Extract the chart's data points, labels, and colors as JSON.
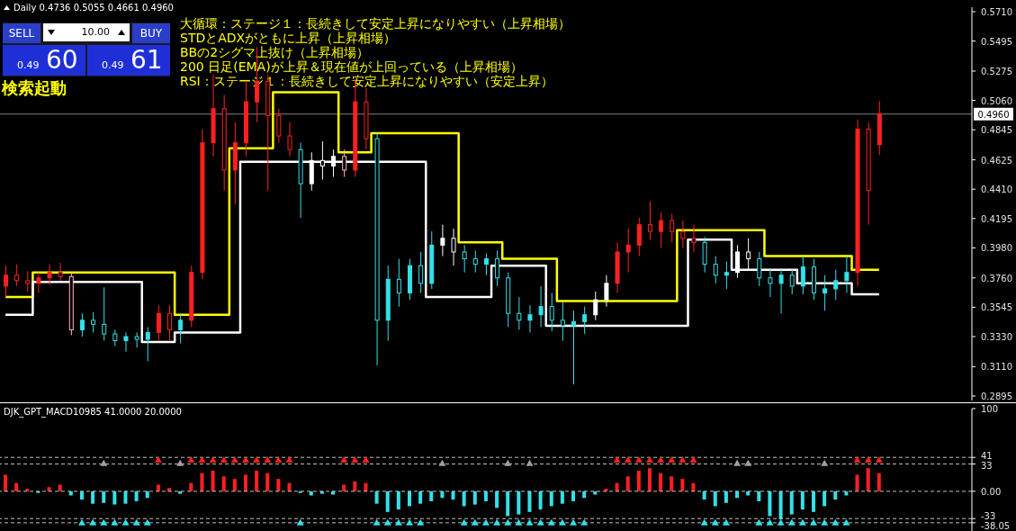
{
  "chart_data": [
    {
      "type": "candlestick",
      "tick_labels": "y",
      "annotations": [
        "Daily 0.4736 0.5055 0.4661 0.4960",
        "SELL",
        "10.00",
        "BUY",
        "0.49",
        "60",
        "0.49",
        "61",
        "検索起動",
        "大循環：ステージ１：長続きして安定上昇になりやすい（上昇相場）",
        "STDとADXがともに上昇（上昇相場）",
        "BBの2シグマ上抜け（上昇相場）",
        "200 日足(EMA)が上昇＆現在値が上回っている（上昇相場）",
        "RSI：ステージ１：長続きして安定上昇になりやすい（安定上昇）"
      ],
      "categories": [
        null,
        null,
        null,
        null,
        null,
        null,
        null,
        null,
        null,
        null,
        null,
        null,
        null,
        null,
        null,
        null,
        null,
        null,
        null,
        null,
        null,
        null,
        null,
        null,
        null,
        null,
        null,
        null,
        null,
        null,
        null,
        null,
        null,
        null,
        null,
        null,
        null,
        null,
        null,
        null,
        null,
        null,
        null,
        null,
        null,
        null,
        null,
        null,
        null,
        null,
        null,
        null,
        null,
        null,
        null,
        null,
        null,
        null,
        null,
        null,
        null,
        null,
        null,
        null,
        null,
        null,
        null,
        null,
        null,
        null,
        null,
        null,
        null,
        null,
        null,
        null,
        null,
        null,
        null,
        null,
        null,
        null,
        null,
        null,
        null,
        null,
        null,
        null,
        null
      ],
      "ohlc": [
        [
          0.37,
          0.385,
          0.362,
          0.378
        ],
        [
          0.378,
          0.386,
          0.37,
          0.374
        ],
        [
          0.374,
          0.381,
          0.366,
          0.372
        ],
        [
          0.372,
          0.38,
          0.365,
          0.376
        ],
        [
          0.376,
          0.386,
          0.371,
          0.38
        ],
        [
          0.38,
          0.387,
          0.374,
          0.377
        ],
        [
          0.377,
          0.38,
          0.334,
          0.338
        ],
        [
          0.338,
          0.35,
          0.333,
          0.345
        ],
        [
          0.345,
          0.351,
          0.336,
          0.342
        ],
        [
          0.342,
          0.369,
          0.33,
          0.335
        ],
        [
          0.335,
          0.338,
          0.326,
          0.33
        ],
        [
          0.33,
          0.336,
          0.322,
          0.333
        ],
        [
          0.333,
          0.336,
          0.325,
          0.331
        ],
        [
          0.331,
          0.34,
          0.315,
          0.336
        ],
        [
          0.336,
          0.356,
          0.33,
          0.35
        ],
        [
          0.35,
          0.356,
          0.33,
          0.338
        ],
        [
          0.338,
          0.35,
          0.328,
          0.345
        ],
        [
          0.345,
          0.385,
          0.34,
          0.38
        ],
        [
          0.38,
          0.485,
          0.375,
          0.475
        ],
        [
          0.475,
          0.525,
          0.465,
          0.5
        ],
        [
          0.5,
          0.51,
          0.44,
          0.455
        ],
        [
          0.455,
          0.49,
          0.43,
          0.475
        ],
        [
          0.475,
          0.52,
          0.465,
          0.505
        ],
        [
          0.505,
          0.545,
          0.49,
          0.52
        ],
        [
          0.52,
          0.525,
          0.44,
          0.495
        ],
        [
          0.495,
          0.5,
          0.475,
          0.48
        ],
        [
          0.48,
          0.49,
          0.465,
          0.47
        ],
        [
          0.47,
          0.475,
          0.42,
          0.445
        ],
        [
          0.445,
          0.468,
          0.44,
          0.462
        ],
        [
          0.462,
          0.476,
          0.448,
          0.458
        ],
        [
          0.458,
          0.47,
          0.45,
          0.465
        ],
        [
          0.465,
          0.47,
          0.45,
          0.455
        ],
        [
          0.455,
          0.522,
          0.45,
          0.505
        ],
        [
          0.505,
          0.515,
          0.47,
          0.478
        ],
        [
          0.478,
          0.482,
          0.312,
          0.345
        ],
        [
          0.345,
          0.385,
          0.33,
          0.375
        ],
        [
          0.375,
          0.39,
          0.355,
          0.365
        ],
        [
          0.365,
          0.39,
          0.36,
          0.385
        ],
        [
          0.385,
          0.395,
          0.365,
          0.372
        ],
        [
          0.372,
          0.41,
          0.368,
          0.4
        ],
        [
          0.4,
          0.415,
          0.392,
          0.405
        ],
        [
          0.405,
          0.412,
          0.385,
          0.395
        ],
        [
          0.395,
          0.4,
          0.38,
          0.39
        ],
        [
          0.39,
          0.396,
          0.38,
          0.386
        ],
        [
          0.386,
          0.394,
          0.378,
          0.39
        ],
        [
          0.39,
          0.396,
          0.37,
          0.376
        ],
        [
          0.376,
          0.38,
          0.34,
          0.35
        ],
        [
          0.35,
          0.362,
          0.338,
          0.345
        ],
        [
          0.345,
          0.356,
          0.336,
          0.349
        ],
        [
          0.349,
          0.37,
          0.34,
          0.355
        ],
        [
          0.355,
          0.365,
          0.337,
          0.345
        ],
        [
          0.345,
          0.358,
          0.33,
          0.341
        ],
        [
          0.341,
          0.352,
          0.298,
          0.344
        ],
        [
          0.344,
          0.355,
          0.335,
          0.349
        ],
        [
          0.349,
          0.366,
          0.345,
          0.36
        ],
        [
          0.36,
          0.378,
          0.355,
          0.372
        ],
        [
          0.372,
          0.402,
          0.365,
          0.395
        ],
        [
          0.395,
          0.412,
          0.38,
          0.4
        ],
        [
          0.4,
          0.42,
          0.392,
          0.415
        ],
        [
          0.415,
          0.432,
          0.404,
          0.41
        ],
        [
          0.41,
          0.424,
          0.398,
          0.418
        ],
        [
          0.418,
          0.423,
          0.402,
          0.41
        ],
        [
          0.41,
          0.418,
          0.398,
          0.405
        ],
        [
          0.405,
          0.415,
          0.395,
          0.402
        ],
        [
          0.402,
          0.406,
          0.38,
          0.386
        ],
        [
          0.386,
          0.392,
          0.372,
          0.378
        ],
        [
          0.378,
          0.388,
          0.368,
          0.38
        ],
        [
          0.38,
          0.4,
          0.376,
          0.395
        ],
        [
          0.395,
          0.405,
          0.382,
          0.39
        ],
        [
          0.39,
          0.395,
          0.37,
          0.376
        ],
        [
          0.376,
          0.383,
          0.362,
          0.372
        ],
        [
          0.372,
          0.382,
          0.35,
          0.378
        ],
        [
          0.378,
          0.382,
          0.364,
          0.37
        ],
        [
          0.37,
          0.392,
          0.364,
          0.384
        ],
        [
          0.384,
          0.39,
          0.36,
          0.365
        ],
        [
          0.365,
          0.378,
          0.352,
          0.368
        ],
        [
          0.368,
          0.382,
          0.36,
          0.374
        ],
        [
          0.374,
          0.392,
          0.365,
          0.38
        ],
        [
          0.38,
          0.492,
          0.37,
          0.485
        ],
        [
          0.485,
          0.49,
          0.415,
          0.44
        ],
        [
          0.4736,
          0.5055,
          0.4661,
          0.496
        ],
        null,
        null,
        null,
        null,
        null,
        null,
        null,
        null
      ],
      "colors": [
        "#ff2020",
        "#ff2020",
        "#ff2020",
        "#ff2020",
        "#ff2020",
        "#ff2020",
        "#ffb6c1",
        "#33e0e8",
        "#33e0e8",
        "#33e0e8",
        "#33e0e8",
        "#33e0e8",
        "#33e0e8",
        "#33e0e8",
        "#ff2020",
        "#ff2020",
        "#33e0e8",
        "#ff2020",
        "#ff2020",
        "#ff2020",
        "#ff2020",
        "#ff2020",
        "#ff2020",
        "#ff2020",
        "#ff2020",
        "#ff2020",
        "#ff2020",
        "#33e0e8",
        "#ffffff",
        "#ffffff",
        "#ffffff",
        "#ffb6c1",
        "#ff2020",
        "#ff2020",
        "#33e0e8",
        "#33e0e8",
        "#33e0e8",
        "#33e0e8",
        "#33e0e8",
        "#33e0e8",
        "#ffffff",
        "#ffffff",
        "#33e0e8",
        "#33e0e8",
        "#33e0e8",
        "#33e0e8",
        "#33e0e8",
        "#33e0e8",
        "#33e0e8",
        "#33e0e8",
        "#33e0e8",
        "#33e0e8",
        "#33e0e8",
        "#33e0e8",
        "#ffffff",
        "#ffffff",
        "#ff2020",
        "#ff2020",
        "#ff2020",
        "#ff2020",
        "#ff2020",
        "#ff2020",
        "#ff2020",
        "#ff2020",
        "#33e0e8",
        "#33e0e8",
        "#33e0e8",
        "#ffffff",
        "#ffffff",
        "#33e0e8",
        "#33e0e8",
        "#33e0e8",
        "#33e0e8",
        "#33e0e8",
        "#33e0e8",
        "#33e0e8",
        "#33e0e8",
        "#33e0e8",
        "#ff2020",
        "#ff2020",
        "#ff2020",
        null,
        null,
        null,
        null,
        null,
        null,
        null,
        null
      ],
      "series": [
        {
          "type": "step",
          "color": "#ffff00",
          "values": [
            0.362,
            0.362,
            0.362,
            0.38,
            0.38,
            0.38,
            0.38,
            0.38,
            0.38,
            0.38,
            0.38,
            0.38,
            0.38,
            0.38,
            0.38,
            0.38,
            0.349,
            0.349,
            0.349,
            0.349,
            0.349,
            0.471,
            0.471,
            0.471,
            0.471,
            0.512,
            0.512,
            0.512,
            0.512,
            0.512,
            0.512,
            0.468,
            0.468,
            0.468,
            0.482,
            0.482,
            0.482,
            0.482,
            0.482,
            0.482,
            0.482,
            0.482,
            0.402,
            0.402,
            0.402,
            0.402,
            0.39,
            0.39,
            0.39,
            0.39,
            0.39,
            0.359,
            0.359,
            0.359,
            0.359,
            0.359,
            0.359,
            0.359,
            0.359,
            0.359,
            0.359,
            0.359,
            0.411,
            0.411,
            0.411,
            0.411,
            0.411,
            0.411,
            0.411,
            0.411,
            0.392,
            0.392,
            0.392,
            0.392,
            0.392,
            0.392,
            0.392,
            0.392,
            0.382,
            0.382,
            0.382,
            null,
            null,
            null,
            null,
            null,
            null,
            null,
            null
          ]
        },
        {
          "type": "step",
          "color": "#ffffff",
          "values": [
            0.349,
            0.349,
            0.349,
            0.373,
            0.373,
            0.373,
            0.373,
            0.373,
            0.373,
            0.373,
            0.373,
            0.373,
            0.373,
            0.329,
            0.329,
            0.329,
            0.336,
            0.336,
            0.336,
            0.336,
            0.336,
            0.336,
            0.461,
            0.461,
            0.461,
            0.461,
            0.461,
            0.461,
            0.461,
            0.461,
            0.461,
            0.461,
            0.461,
            0.461,
            0.461,
            0.461,
            0.461,
            0.461,
            0.461,
            0.362,
            0.362,
            0.362,
            0.362,
            0.362,
            0.362,
            0.385,
            0.385,
            0.385,
            0.385,
            0.385,
            0.341,
            0.341,
            0.341,
            0.341,
            0.341,
            0.341,
            0.341,
            0.341,
            0.341,
            0.341,
            0.341,
            0.341,
            0.341,
            0.404,
            0.404,
            0.404,
            0.404,
            0.382,
            0.382,
            0.382,
            0.382,
            0.382,
            0.382,
            0.372,
            0.372,
            0.372,
            0.372,
            0.372,
            0.364,
            0.364,
            0.364,
            null,
            null,
            null,
            null,
            null,
            null,
            null,
            null
          ]
        }
      ],
      "ylim": [
        0.2862,
        0.5743
      ],
      "yticks": [
        {
          "value": 0.571,
          "label": "0.5710"
        },
        {
          "value": 0.5495,
          "label": "0.5495"
        },
        {
          "value": 0.5275,
          "label": "0.5275"
        },
        {
          "value": 0.506,
          "label": "0.5060"
        },
        {
          "value": 0.4845,
          "label": "0.4845"
        },
        {
          "value": 0.4625,
          "label": "0.4625"
        },
        {
          "value": 0.441,
          "label": "0.4410"
        },
        {
          "value": 0.4195,
          "label": "0.4195"
        },
        {
          "value": 0.398,
          "label": "0.3980"
        },
        {
          "value": 0.376,
          "label": "0.3760"
        },
        {
          "value": 0.3545,
          "label": "0.3545"
        },
        {
          "value": 0.333,
          "label": "0.3330"
        },
        {
          "value": 0.311,
          "label": "0.3110"
        },
        {
          "value": 0.2895,
          "label": "0.2895"
        }
      ],
      "ref_lines": [
        {
          "axis": "y",
          "value": 0.496,
          "label": "0.4960",
          "color": "#808080"
        }
      ]
    },
    {
      "type": "bar",
      "title": "DJK_GPT_MACD10985 41.0000 20.0000",
      "tick_labels": "y",
      "marker": "triangle",
      "categories": [
        null,
        null,
        null,
        null,
        null,
        null,
        null,
        null,
        null,
        null,
        null,
        null,
        null,
        null,
        null,
        null,
        null,
        null,
        null,
        null,
        null,
        null,
        null,
        null,
        null,
        null,
        null,
        null,
        null,
        null,
        null,
        null,
        null,
        null,
        null,
        null,
        null,
        null,
        null,
        null,
        null,
        null,
        null,
        null,
        null,
        null,
        null,
        null,
        null,
        null,
        null,
        null,
        null,
        null,
        null,
        null,
        null,
        null,
        null,
        null,
        null,
        null,
        null,
        null,
        null,
        null,
        null,
        null,
        null,
        null,
        null,
        null,
        null,
        null,
        null,
        null,
        null,
        null,
        null,
        null,
        null,
        null,
        null,
        null,
        null,
        null,
        null,
        null,
        null
      ],
      "series": [
        {
          "values": [
            20,
            10,
            3,
            -2,
            5,
            8,
            -5,
            -10,
            -15,
            -14,
            -16,
            -15,
            -12,
            -8,
            8,
            4,
            -3,
            10,
            22,
            25,
            18,
            15,
            20,
            25,
            22,
            15,
            10,
            -2,
            -5,
            -3,
            -4,
            8,
            12,
            10,
            -15,
            -25,
            -22,
            -18,
            -15,
            -12,
            -8,
            -10,
            -18,
            -16,
            -12,
            -20,
            -30,
            -28,
            -25,
            -22,
            -18,
            -15,
            -12,
            -8,
            -4,
            3,
            10,
            18,
            25,
            28,
            22,
            18,
            15,
            10,
            -10,
            -18,
            -14,
            -8,
            -5,
            -12,
            -30,
            -34,
            -28,
            -22,
            -25,
            -18,
            -10,
            -5,
            20,
            28,
            22,
            null,
            null,
            null,
            null,
            null,
            null,
            null,
            null
          ],
          "colors": [
            "#ff2020",
            "#ff2020",
            "#ff2020",
            "#33e0e8",
            "#ff2020",
            "#ff2020",
            "#33e0e8",
            "#33e0e8",
            "#33e0e8",
            "#33e0e8",
            "#33e0e8",
            "#33e0e8",
            "#33e0e8",
            "#33e0e8",
            "#ff2020",
            "#ff2020",
            "#33e0e8",
            "#ff2020",
            "#ff2020",
            "#ff2020",
            "#ff2020",
            "#ff2020",
            "#ff2020",
            "#ff2020",
            "#ff2020",
            "#ff2020",
            "#ff2020",
            "#33e0e8",
            "#33e0e8",
            "#33e0e8",
            "#33e0e8",
            "#ff2020",
            "#ff2020",
            "#ff2020",
            "#33e0e8",
            "#33e0e8",
            "#33e0e8",
            "#33e0e8",
            "#33e0e8",
            "#33e0e8",
            "#33e0e8",
            "#33e0e8",
            "#33e0e8",
            "#33e0e8",
            "#33e0e8",
            "#33e0e8",
            "#33e0e8",
            "#33e0e8",
            "#33e0e8",
            "#33e0e8",
            "#33e0e8",
            "#33e0e8",
            "#33e0e8",
            "#33e0e8",
            "#33e0e8",
            "#ff2020",
            "#ff2020",
            "#ff2020",
            "#ff2020",
            "#ff2020",
            "#ff2020",
            "#ff2020",
            "#ff2020",
            "#ff2020",
            "#33e0e8",
            "#33e0e8",
            "#33e0e8",
            "#33e0e8",
            "#33e0e8",
            "#33e0e8",
            "#33e0e8",
            "#33e0e8",
            "#33e0e8",
            "#33e0e8",
            "#33e0e8",
            "#33e0e8",
            "#33e0e8",
            "#33e0e8",
            "#ff2020",
            "#ff2020",
            "#ff2020",
            null,
            null,
            null,
            null,
            null,
            null,
            null,
            null
          ]
        },
        {
          "type": "scatter",
          "color": "#ff2020",
          "values": [
            null,
            null,
            null,
            null,
            null,
            null,
            null,
            null,
            null,
            null,
            null,
            null,
            null,
            null,
            38,
            null,
            null,
            38,
            38,
            38,
            38,
            38,
            38,
            38,
            38,
            38,
            38,
            null,
            null,
            null,
            null,
            38,
            38,
            38,
            null,
            null,
            null,
            null,
            null,
            null,
            null,
            null,
            null,
            null,
            null,
            null,
            null,
            null,
            null,
            null,
            null,
            null,
            null,
            null,
            null,
            null,
            38,
            38,
            38,
            38,
            38,
            38,
            38,
            38,
            null,
            null,
            null,
            null,
            null,
            null,
            null,
            null,
            null,
            null,
            null,
            null,
            null,
            null,
            38,
            38,
            38,
            null,
            null,
            null,
            null,
            null,
            null,
            null,
            null
          ]
        },
        {
          "type": "scatter",
          "color": "#33e0e8",
          "values": [
            null,
            null,
            null,
            null,
            null,
            null,
            null,
            -38,
            -38,
            -38,
            -38,
            -38,
            -38,
            -38,
            null,
            null,
            null,
            null,
            null,
            null,
            null,
            null,
            null,
            null,
            null,
            null,
            null,
            -38,
            null,
            null,
            null,
            null,
            null,
            null,
            -38,
            -38,
            -38,
            -38,
            -38,
            null,
            null,
            null,
            -38,
            -38,
            -38,
            -38,
            -38,
            -38,
            -38,
            -38,
            -38,
            -38,
            -38,
            -38,
            null,
            null,
            null,
            null,
            null,
            null,
            null,
            null,
            null,
            null,
            -38,
            -38,
            -38,
            null,
            null,
            -38,
            -38,
            -38,
            -38,
            -38,
            -38,
            -38,
            -38,
            -38,
            null,
            null,
            null,
            null,
            null,
            null,
            null,
            null,
            null,
            null,
            null
          ]
        },
        {
          "type": "scatter",
          "color": "#a0a0a0",
          "values": [
            null,
            null,
            null,
            null,
            null,
            null,
            null,
            null,
            null,
            34,
            null,
            null,
            null,
            null,
            null,
            null,
            34,
            null,
            null,
            null,
            null,
            null,
            null,
            null,
            null,
            null,
            null,
            null,
            null,
            null,
            null,
            null,
            null,
            null,
            null,
            null,
            null,
            null,
            null,
            null,
            34,
            null,
            null,
            null,
            null,
            null,
            34,
            null,
            34,
            null,
            null,
            null,
            null,
            null,
            null,
            null,
            null,
            null,
            null,
            null,
            null,
            null,
            null,
            null,
            null,
            null,
            null,
            34,
            34,
            null,
            null,
            null,
            null,
            null,
            null,
            34,
            null,
            null,
            null,
            null,
            null,
            null,
            null,
            null,
            null,
            null,
            null,
            null,
            null
          ]
        }
      ],
      "ylim": [
        -48,
        100
      ],
      "yticks": [
        100,
        41,
        33,
        {
          "value": 0,
          "label": "0.00"
        },
        -33,
        -38.05
      ],
      "ref_lines": [
        {
          "axis": "y",
          "value": 41,
          "color": "#c0c0c0",
          "line_style": "dashed"
        },
        {
          "axis": "y",
          "value": 33,
          "color": "#c0c0c0",
          "line_style": "dashed"
        },
        {
          "axis": "y",
          "value": 0,
          "color": "#c0c0c0",
          "line_style": "dashed"
        },
        {
          "axis": "y",
          "value": -33,
          "color": "#c0c0c0",
          "line_style": "dashed"
        },
        {
          "axis": "y",
          "value": -38.05,
          "color": "#c0c0c0",
          "line_style": "dashed"
        }
      ]
    }
  ]
}
